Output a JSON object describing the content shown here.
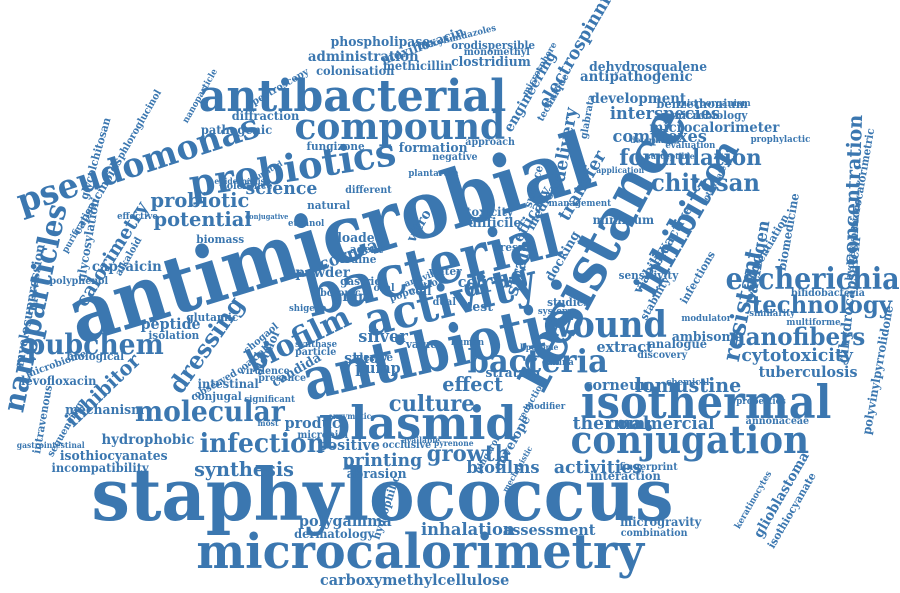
{
  "cloud": {
    "color": "#3b77b0",
    "words": [
      {
        "text": "staphylococcus"
      },
      {
        "text": "microcalorimetry"
      },
      {
        "text": "antimicrobial"
      },
      {
        "text": "resistance"
      },
      {
        "text": "antibacterial"
      },
      {
        "text": "bacterial"
      },
      {
        "text": "antibiotic"
      },
      {
        "text": "activity"
      },
      {
        "text": "compound"
      },
      {
        "text": "probiotics"
      },
      {
        "text": "pseudomonas"
      },
      {
        "text": "isothermal"
      },
      {
        "text": "conjugation"
      },
      {
        "text": "plasmid"
      },
      {
        "text": "nanoparticles"
      },
      {
        "text": "biofilm"
      },
      {
        "text": "dressing"
      },
      {
        "text": "wound"
      },
      {
        "text": "bacteria"
      },
      {
        "text": "inhibition"
      },
      {
        "text": "escherichia"
      },
      {
        "text": "molecular"
      },
      {
        "text": "infection"
      },
      {
        "text": "technology"
      },
      {
        "text": "nanofibers"
      },
      {
        "text": "pubchem"
      },
      {
        "text": "formulation"
      },
      {
        "text": "chitosan"
      },
      {
        "text": "concentration"
      },
      {
        "text": "resistant"
      },
      {
        "text": "calorimetry"
      },
      {
        "text": "probiotic"
      },
      {
        "text": "potential"
      },
      {
        "text": "drug"
      },
      {
        "text": "culture"
      },
      {
        "text": "effect"
      },
      {
        "text": "growth"
      },
      {
        "text": "synthesis"
      },
      {
        "text": "inhibitor"
      },
      {
        "text": "science"
      },
      {
        "text": "strain"
      },
      {
        "text": "commercial"
      },
      {
        "text": "lomustine"
      },
      {
        "text": "cytotoxicity"
      },
      {
        "text": "thermal"
      },
      {
        "text": "printing"
      },
      {
        "text": "biofilms"
      },
      {
        "text": "activities"
      },
      {
        "text": "inhalation"
      },
      {
        "text": "assessment"
      },
      {
        "text": "carboxymethylcellulose"
      },
      {
        "text": "polygamma"
      },
      {
        "text": "dermatology"
      },
      {
        "text": "microgravity"
      },
      {
        "text": "combination"
      },
      {
        "text": "interaction"
      },
      {
        "text": "fingerprint"
      },
      {
        "text": "hydrophobic"
      },
      {
        "text": "isothiocyanates"
      },
      {
        "text": "incompatibility"
      },
      {
        "text": "mechanism"
      },
      {
        "text": "levofloxacin"
      },
      {
        "text": "intravenous"
      },
      {
        "text": "myelosuppression"
      },
      {
        "text": "glycosylation"
      },
      {
        "text": "capsaicinoids"
      },
      {
        "text": "glycolchitosan"
      },
      {
        "text": "capsaicin"
      },
      {
        "text": "peptide"
      },
      {
        "text": "glutamic"
      },
      {
        "text": "isolation"
      },
      {
        "text": "polyphenol"
      },
      {
        "text": "biological"
      },
      {
        "text": "microbiome"
      },
      {
        "text": "sequencing"
      },
      {
        "text": "gastrointestinal"
      },
      {
        "text": "conjugal"
      },
      {
        "text": "intestinal"
      },
      {
        "text": "product"
      },
      {
        "text": "positive"
      },
      {
        "text": "microbial"
      },
      {
        "text": "abrasion"
      },
      {
        "text": "hydrophilic"
      },
      {
        "text": "study"
      },
      {
        "text": "pump"
      },
      {
        "text": "silver"
      },
      {
        "text": "candida"
      },
      {
        "text": "alcohol"
      },
      {
        "text": "corneal"
      },
      {
        "text": "powder"
      },
      {
        "text": "gram"
      },
      {
        "text": "cell"
      },
      {
        "text": "coli"
      },
      {
        "text": "loaded"
      },
      {
        "text": "agent"
      },
      {
        "text": "iodine"
      },
      {
        "text": "vitro"
      },
      {
        "text": "biomass"
      },
      {
        "text": "natural"
      },
      {
        "text": "different"
      },
      {
        "text": "tolerance"
      },
      {
        "text": "toxicity"
      },
      {
        "text": "difficile"
      },
      {
        "text": "efficacy"
      },
      {
        "text": "medical"
      },
      {
        "text": "transfer"
      },
      {
        "text": "delivery"
      },
      {
        "text": "formation"
      },
      {
        "text": "negative"
      },
      {
        "text": "fungizone"
      },
      {
        "text": "approach"
      },
      {
        "text": "pathogenic"
      },
      {
        "text": "diffraction"
      },
      {
        "text": "microbiology"
      },
      {
        "text": "interspecies"
      },
      {
        "text": "complexes"
      },
      {
        "text": "development"
      },
      {
        "text": "antipathogenic"
      },
      {
        "text": "dehydrosqualene"
      },
      {
        "text": "benzethonium"
      },
      {
        "text": "microcalorimeter"
      },
      {
        "text": "microorganism"
      },
      {
        "text": "evaluation"
      },
      {
        "text": "prophylactic"
      },
      {
        "text": "microcalorimetric"
      },
      {
        "text": "hydroxybenzoic"
      },
      {
        "text": "bioactive"
      },
      {
        "text": "minimum"
      },
      {
        "text": "pathogen"
      },
      {
        "text": "biomedicine"
      },
      {
        "text": "dihydrocapsaicin"
      },
      {
        "text": "polyvinylpyrrolidone"
      },
      {
        "text": "bifidobacteria"
      },
      {
        "text": "similarity"
      },
      {
        "text": "modulator"
      },
      {
        "text": "ambisome"
      },
      {
        "text": "multiforme"
      },
      {
        "text": "analogue"
      },
      {
        "text": "extract"
      },
      {
        "text": "discovery"
      },
      {
        "text": "tuberculosis"
      },
      {
        "text": "annonaceae"
      },
      {
        "text": "corneum"
      },
      {
        "text": "stratum"
      },
      {
        "text": "viability"
      },
      {
        "text": "infections"
      },
      {
        "text": "potentiation"
      },
      {
        "text": "glioblastoma"
      },
      {
        "text": "isothiocyanate"
      },
      {
        "text": "keratinocytes"
      },
      {
        "text": "envelope"
      },
      {
        "text": "electrospinning"
      },
      {
        "text": "engineering"
      },
      {
        "text": "phospholipase"
      },
      {
        "text": "moxifloxacin"
      },
      {
        "text": "methicillin"
      },
      {
        "text": "clostridium"
      },
      {
        "text": "administration"
      },
      {
        "text": "colonisation"
      },
      {
        "text": "orodispersible"
      },
      {
        "text": "monomethyl"
      },
      {
        "text": "diacylimidazoles"
      },
      {
        "text": "spectroscopy"
      },
      {
        "text": "phloroglucinol"
      },
      {
        "text": "nanoparticle"
      },
      {
        "text": "water"
      },
      {
        "text": "test"
      },
      {
        "text": "value"
      },
      {
        "text": "device"
      },
      {
        "text": "particle"
      },
      {
        "text": "boronic"
      },
      {
        "text": "shigella"
      },
      {
        "text": "human"
      },
      {
        "text": "result"
      },
      {
        "text": "docking"
      },
      {
        "text": "studies"
      },
      {
        "text": "system"
      },
      {
        "text": "surface"
      },
      {
        "text": "gastric"
      },
      {
        "text": "oral"
      },
      {
        "text": "dual"
      },
      {
        "text": "most"
      },
      {
        "text": "epidermidis"
      },
      {
        "text": "simulated"
      },
      {
        "text": "plantarum"
      },
      {
        "text": "pyrenone"
      },
      {
        "text": "available"
      },
      {
        "text": "occlusive"
      },
      {
        "text": "gingerol"
      },
      {
        "text": "mechanistic"
      },
      {
        "text": "liposome"
      },
      {
        "text": "canina"
      },
      {
        "text": "modifier"
      },
      {
        "text": "reduction"
      },
      {
        "text": "chemical"
      },
      {
        "text": "properties"
      },
      {
        "text": "determined"
      },
      {
        "text": "susceptible"
      },
      {
        "text": "management"
      },
      {
        "text": "application"
      },
      {
        "text": "potentiate"
      },
      {
        "text": "sensitivity"
      },
      {
        "text": "stability"
      },
      {
        "text": "virulence"
      },
      {
        "text": "significant"
      },
      {
        "text": "observed"
      },
      {
        "text": "synthase"
      },
      {
        "text": "presence"
      },
      {
        "text": "enzymatic"
      },
      {
        "text": "ethanol"
      },
      {
        "text": "technique"
      },
      {
        "text": "glabrata"
      },
      {
        "text": "conjugative"
      },
      {
        "text": "microsphere"
      },
      {
        "text": "population"
      },
      {
        "text": "antiviral"
      },
      {
        "text": "shogaol"
      },
      {
        "text": "coaxial"
      },
      {
        "text": "alkaloid"
      },
      {
        "text": "effective"
      },
      {
        "text": "purification"
      },
      {
        "text": "piperidone"
      },
      {
        "text": "streptococcus"
      }
    ]
  }
}
